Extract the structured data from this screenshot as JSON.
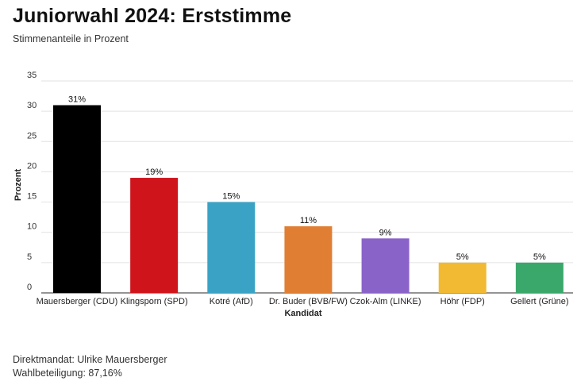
{
  "header": {
    "title": "Juniorwahl 2024: Erststimme",
    "subtitle": "Stimmenanteile in Prozent"
  },
  "chart_data": {
    "type": "bar",
    "title": "Juniorwahl 2024: Erststimme",
    "subtitle": "Stimmenanteile in Prozent",
    "xlabel": "Kandidat",
    "ylabel": "Prozent",
    "ylim": [
      0,
      35
    ],
    "yticks": [
      "0",
      "5",
      "10",
      "15",
      "20",
      "25",
      "30",
      "35"
    ],
    "grid": true,
    "categories": [
      "Mauersberger (CDU)",
      "Klingsporn (SPD)",
      "Kotré (AfD)",
      "Dr. Buder (BVB/FW)",
      "Czok-Alm (LINKE)",
      "Höhr (FDP)",
      "Gellert (Grüne)"
    ],
    "values": [
      31,
      19,
      15,
      11,
      9,
      5,
      5
    ],
    "data_labels": [
      "31%",
      "19%",
      "15%",
      "11%",
      "9%",
      "5%",
      "5%"
    ],
    "colors": [
      "#000000",
      "#d0141b",
      "#3aa3c5",
      "#e07f34",
      "#8a63c9",
      "#f2b933",
      "#3aa86b"
    ]
  },
  "footer": {
    "line1": "Direktmandat: Ulrike Mauersberger",
    "line2": "Wahlbeteiligung: 87,16%"
  }
}
